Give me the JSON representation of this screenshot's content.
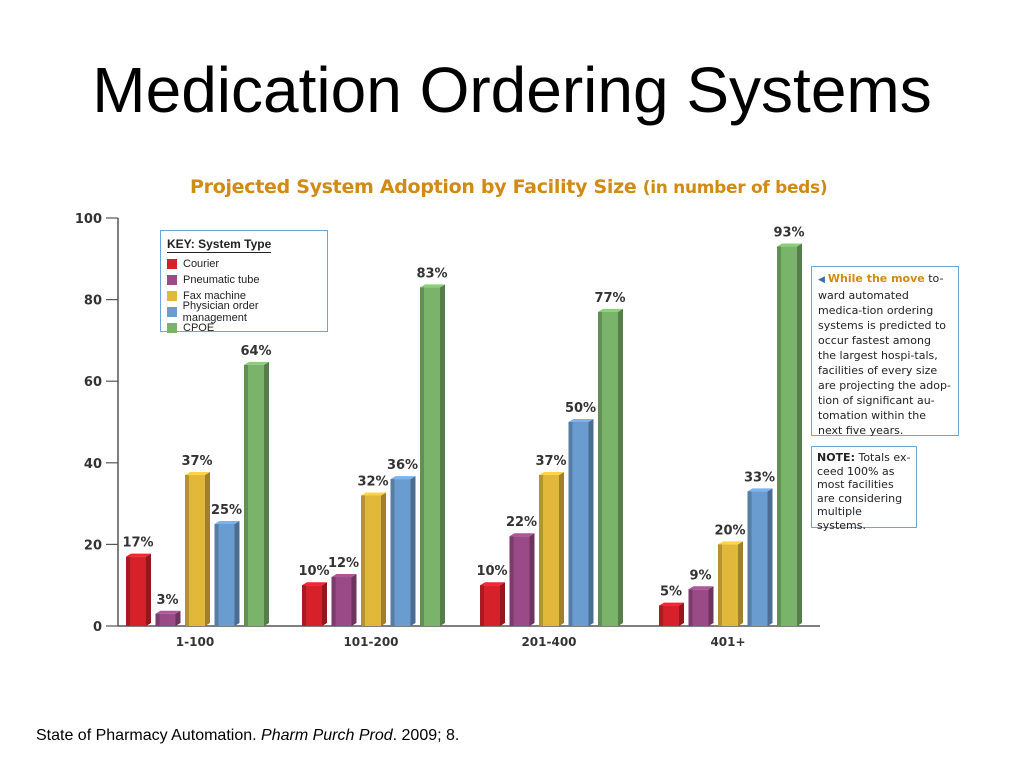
{
  "slide": {
    "title": "Medication Ordering Systems",
    "citation_pre": "State of Pharmacy Automation. ",
    "citation_journal": "Pharm Purch Prod",
    "citation_post": ". 2009; 8."
  },
  "chart_data": {
    "type": "bar",
    "title": "Projected System Adoption by Facility Size",
    "subtitle": "(in number of beds)",
    "xlabel": "",
    "ylabel": "",
    "ylim": [
      0,
      100
    ],
    "yticks": [
      "0",
      "20",
      "40",
      "60",
      "80",
      "100"
    ],
    "categories": [
      "1-100",
      "101-200",
      "201-400",
      "401+"
    ],
    "legend_title": "KEY: System Type",
    "legend_position": "top-left",
    "series": [
      {
        "name": "Courier",
        "color": "#d6202a",
        "values": [
          17,
          10,
          10,
          5
        ],
        "labels": [
          "17%",
          "10%",
          "10%",
          "5%"
        ]
      },
      {
        "name": "Pneumatic tube",
        "color": "#9a4a86",
        "values": [
          3,
          12,
          22,
          9
        ],
        "labels": [
          "3%",
          "12%",
          "22%",
          "9%"
        ]
      },
      {
        "name": "Fax machine",
        "color": "#e2b83a",
        "values": [
          37,
          32,
          37,
          20
        ],
        "labels": [
          "37%",
          "32%",
          "37%",
          "20%"
        ]
      },
      {
        "name": "Physician order management",
        "color": "#6a9ccf",
        "values": [
          25,
          36,
          50,
          33
        ],
        "labels": [
          "25%",
          "36%",
          "50%",
          "33%"
        ]
      },
      {
        "name": "CPOE",
        "color": "#79b46a",
        "values": [
          64,
          83,
          77,
          93
        ],
        "labels": [
          "64%",
          "83%",
          "77%",
          "93%"
        ]
      }
    ]
  },
  "notes": {
    "note1_lead": "While the move",
    "note1_body": " to-ward automated medica-tion ordering systems is predicted to occur fastest among the largest hospi-tals, facilities of every size are projecting the adop-tion of significant au-tomation within the next five years.",
    "note2_lead": "NOTE:",
    "note2_body": " Totals ex-ceed 100% as most facilities are considering multiple systems."
  }
}
